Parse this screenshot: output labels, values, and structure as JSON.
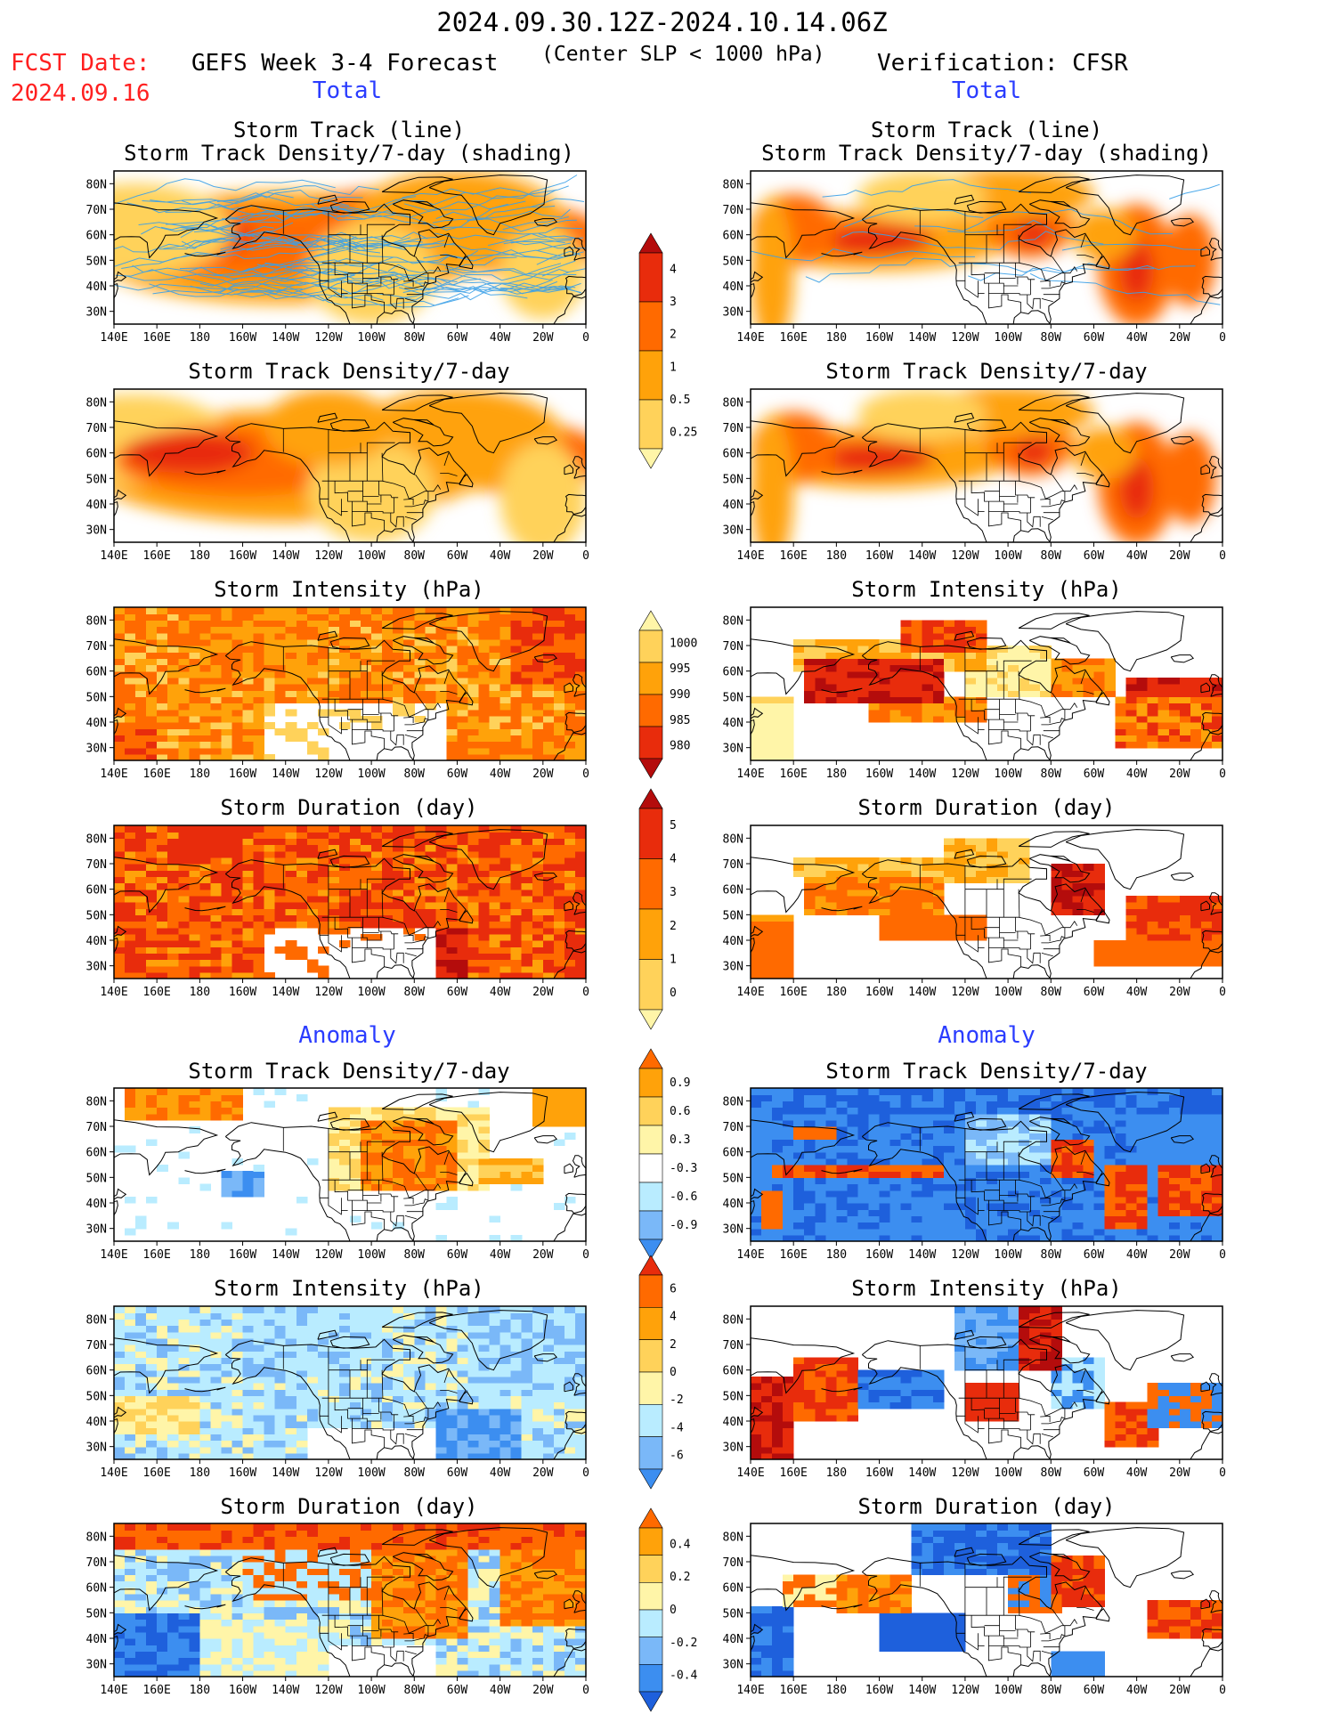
{
  "header": {
    "period": "2024.09.30.12Z-2024.10.14.06Z",
    "fcst_label": "FCST Date:",
    "fcst_date": "2024.09.16",
    "left_title": "GEFS Week 3-4 Forecast",
    "center_note": "(Center SLP < 1000 hPa)",
    "right_title": "Verification: CFSR",
    "total_left": "Total",
    "total_right": "Total",
    "anomaly_left": "Anomaly",
    "anomaly_right": "Anomaly"
  },
  "axes": {
    "lat_ticks": [
      "80N",
      "70N",
      "60N",
      "50N",
      "40N",
      "30N"
    ],
    "lon_ticks": [
      "140E",
      "160E",
      "180",
      "160W",
      "140W",
      "120W",
      "100W",
      "80W",
      "60W",
      "40W",
      "20W",
      "0"
    ]
  },
  "panel_titles": {
    "track_line": "Storm Track (line)",
    "track_shading": "Storm Track Density/7-day (shading)",
    "density": "Storm Track Density/7-day",
    "intensity": "Storm Intensity (hPa)",
    "duration": "Storm Duration (day)"
  },
  "colors": {
    "pale": "#fff5a8",
    "light_orange": "#ffd25a",
    "orange": "#ffa20a",
    "dark_orange": "#ff6a00",
    "red": "#e82c0c",
    "dark_red": "#b40c0c",
    "light_blue": "#b9ecff",
    "mid_blue": "#7ab8f8",
    "blue": "#3c8ef0",
    "dark_blue": "#1e60dc",
    "track_line": "#3aa0e8"
  },
  "chart_data": [
    {
      "type": "heatmap",
      "panel": "forecast-total-track",
      "title_lines": [
        "Storm Track (line)",
        "Storm Track Density/7-day (shading)"
      ],
      "lon_range": [
        "140E",
        "0"
      ],
      "lat_range": [
        "25N",
        "85N"
      ]
    },
    {
      "type": "heatmap",
      "panel": "verification-total-track",
      "title_lines": [
        "Storm Track (line)",
        "Storm Track Density/7-day (shading)"
      ],
      "lon_range": [
        "140E",
        "0"
      ],
      "lat_range": [
        "25N",
        "85N"
      ]
    },
    {
      "type": "heatmap",
      "panel": "forecast-total-density",
      "title_lines": [
        "Storm Track Density/7-day"
      ]
    },
    {
      "type": "heatmap",
      "panel": "verification-total-density",
      "title_lines": [
        "Storm Track Density/7-day"
      ]
    },
    {
      "type": "heatmap",
      "panel": "forecast-total-intensity",
      "title_lines": [
        "Storm Intensity (hPa)"
      ]
    },
    {
      "type": "heatmap",
      "panel": "verification-total-intensity",
      "title_lines": [
        "Storm Intensity (hPa)"
      ]
    },
    {
      "type": "heatmap",
      "panel": "forecast-total-duration",
      "title_lines": [
        "Storm Duration (day)"
      ]
    },
    {
      "type": "heatmap",
      "panel": "verification-total-duration",
      "title_lines": [
        "Storm Duration (day)"
      ]
    },
    {
      "type": "heatmap",
      "panel": "forecast-anomaly-density",
      "title_lines": [
        "Storm Track Density/7-day"
      ]
    },
    {
      "type": "heatmap",
      "panel": "verification-anomaly-density",
      "title_lines": [
        "Storm Track Density/7-day"
      ]
    },
    {
      "type": "heatmap",
      "panel": "forecast-anomaly-intensity",
      "title_lines": [
        "Storm Intensity (hPa)"
      ]
    },
    {
      "type": "heatmap",
      "panel": "verification-anomaly-intensity",
      "title_lines": [
        "Storm Intensity (hPa)"
      ]
    },
    {
      "type": "heatmap",
      "panel": "forecast-anomaly-duration",
      "title_lines": [
        "Storm Duration (day)"
      ]
    },
    {
      "type": "heatmap",
      "panel": "verification-anomaly-duration",
      "title_lines": [
        "Storm Duration (day)"
      ]
    }
  ],
  "colorbars": [
    {
      "name": "density-total",
      "labels": [
        "4",
        "3",
        "2",
        "1",
        "0.5",
        "0.25"
      ],
      "colors": [
        "#b40c0c",
        "#e82c0c",
        "#ff6a00",
        "#ffa20a",
        "#ffd25a",
        "#fff5a8"
      ]
    },
    {
      "name": "intensity-total",
      "labels": [
        "1000",
        "995",
        "990",
        "985",
        "980"
      ],
      "colors": [
        "#fff5a8",
        "#ffd25a",
        "#ffa20a",
        "#ff6a00",
        "#e82c0c",
        "#b40c0c"
      ]
    },
    {
      "name": "duration-total",
      "labels": [
        "5",
        "4",
        "3",
        "2",
        "1",
        "0"
      ],
      "colors": [
        "#b40c0c",
        "#e82c0c",
        "#ff6a00",
        "#ffa20a",
        "#ffd25a",
        "#fff5a8"
      ]
    },
    {
      "name": "density-anomaly",
      "labels": [
        "0.9",
        "0.6",
        "0.3",
        "-0.3",
        "-0.6",
        "-0.9"
      ],
      "colors": [
        "#ff6a00",
        "#ffa20a",
        "#ffd25a",
        "#fff5a8",
        "#ffffff",
        "#b9ecff",
        "#7ab8f8",
        "#3c8ef0"
      ]
    },
    {
      "name": "intensity-anomaly",
      "labels": [
        "6",
        "4",
        "2",
        "0",
        "-2",
        "-4",
        "-6"
      ],
      "colors": [
        "#e82c0c",
        "#ff6a00",
        "#ffa20a",
        "#ffd25a",
        "#fff5a8",
        "#b9ecff",
        "#7ab8f8",
        "#3c8ef0"
      ]
    },
    {
      "name": "duration-anomaly",
      "labels": [
        "0.4",
        "0.2",
        "0",
        "-0.2",
        "-0.4"
      ],
      "colors": [
        "#ff6a00",
        "#ffa20a",
        "#ffd25a",
        "#fff5a8",
        "#b9ecff",
        "#7ab8f8",
        "#3c8ef0",
        "#1e60dc"
      ]
    }
  ]
}
